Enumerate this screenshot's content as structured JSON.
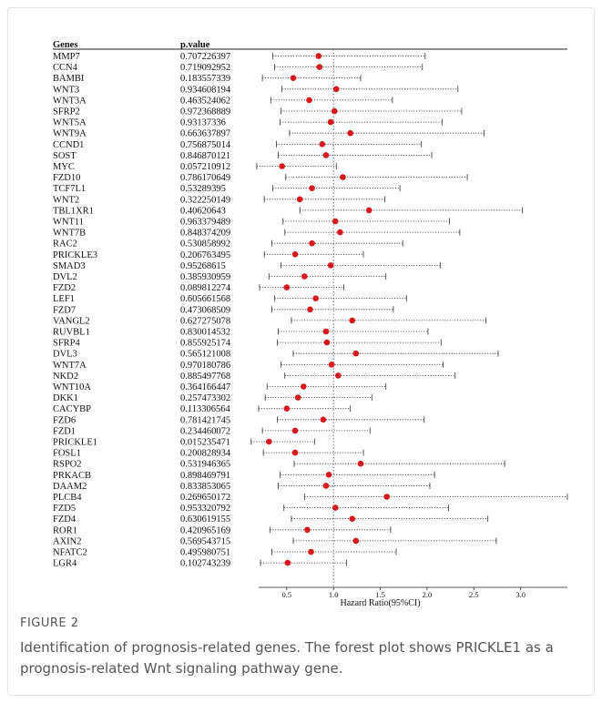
{
  "figure": {
    "label": "FIGURE 2",
    "caption": "Identification of prognosis-related genes. The forest plot shows PRICKLE1 as a prognosis-related Wnt signaling pathway gene."
  },
  "chart_data": {
    "type": "forest",
    "column_headers": {
      "genes": "Genes",
      "pvalue": "p.value"
    },
    "xlabel": "Hazard Ratio(95%CI)",
    "xticks": [
      "0.5",
      "1.0",
      "1.5",
      "2.0",
      "2.5",
      "3.0"
    ],
    "xlim": [
      0.2,
      3.5
    ],
    "reference_line": 1.0,
    "point_color": "#d7191c",
    "rows": [
      {
        "gene": "MMP7",
        "p": "0.707226397",
        "hr": 0.84,
        "lo": 0.35,
        "hi": 1.98
      },
      {
        "gene": "CCN4",
        "p": "0.719092952",
        "hr": 0.85,
        "lo": 0.37,
        "hi": 1.95
      },
      {
        "gene": "BAMBI",
        "p": "0.183557339",
        "hr": 0.57,
        "lo": 0.24,
        "hi": 1.29
      },
      {
        "gene": "WNT3",
        "p": "0.934608194",
        "hr": 1.03,
        "lo": 0.45,
        "hi": 2.33
      },
      {
        "gene": "WNT3A",
        "p": "0.463524062",
        "hr": 0.74,
        "lo": 0.33,
        "hi": 1.63
      },
      {
        "gene": "SFRP2",
        "p": "0.972368889",
        "hr": 1.01,
        "lo": 0.44,
        "hi": 2.37
      },
      {
        "gene": "WNT5A",
        "p": "0.93137336",
        "hr": 0.97,
        "lo": 0.43,
        "hi": 2.16
      },
      {
        "gene": "WNT9A",
        "p": "0.663637897",
        "hr": 1.18,
        "lo": 0.53,
        "hi": 2.61
      },
      {
        "gene": "CCND1",
        "p": "0.756875014",
        "hr": 0.88,
        "lo": 0.39,
        "hi": 1.94
      },
      {
        "gene": "SOST",
        "p": "0.846870121",
        "hr": 0.92,
        "lo": 0.41,
        "hi": 2.05
      },
      {
        "gene": "MYC",
        "p": "0.057210912",
        "hr": 0.45,
        "lo": 0.18,
        "hi": 1.03
      },
      {
        "gene": "FZD10",
        "p": "0.786170649",
        "hr": 1.1,
        "lo": 0.49,
        "hi": 2.43
      },
      {
        "gene": "TCF7L1",
        "p": "0.53289395",
        "hr": 0.77,
        "lo": 0.35,
        "hi": 1.71
      },
      {
        "gene": "WNT2",
        "p": "0.322250149",
        "hr": 0.64,
        "lo": 0.26,
        "hi": 1.55
      },
      {
        "gene": "TBL1XR1",
        "p": "0.40620643",
        "hr": 1.38,
        "lo": 0.64,
        "hi": 3.02
      },
      {
        "gene": "WNT11",
        "p": "0.963379489",
        "hr": 1.02,
        "lo": 0.46,
        "hi": 2.24
      },
      {
        "gene": "WNT7B",
        "p": "0.848374209",
        "hr": 1.07,
        "lo": 0.48,
        "hi": 2.35
      },
      {
        "gene": "RAC2",
        "p": "0.530858992",
        "hr": 0.77,
        "lo": 0.34,
        "hi": 1.74
      },
      {
        "gene": "PRICKLE3",
        "p": "0.206763495",
        "hr": 0.59,
        "lo": 0.26,
        "hi": 1.32
      },
      {
        "gene": "SMAD3",
        "p": "0.95268615",
        "hr": 0.97,
        "lo": 0.44,
        "hi": 2.14
      },
      {
        "gene": "DVL2",
        "p": "0.385930959",
        "hr": 0.69,
        "lo": 0.31,
        "hi": 1.56
      },
      {
        "gene": "FZD2",
        "p": "0.089812274",
        "hr": 0.5,
        "lo": 0.21,
        "hi": 1.11
      },
      {
        "gene": "LEF1",
        "p": "0.605661568",
        "hr": 0.81,
        "lo": 0.37,
        "hi": 1.78
      },
      {
        "gene": "FZD7",
        "p": "0.473068509",
        "hr": 0.75,
        "lo": 0.34,
        "hi": 1.64
      },
      {
        "gene": "VANGL2",
        "p": "0.627275078",
        "hr": 1.2,
        "lo": 0.55,
        "hi": 2.63
      },
      {
        "gene": "RUVBL1",
        "p": "0.830014532",
        "hr": 0.92,
        "lo": 0.41,
        "hi": 2.01
      },
      {
        "gene": "SFRP4",
        "p": "0.855925174",
        "hr": 0.93,
        "lo": 0.4,
        "hi": 2.15
      },
      {
        "gene": "DVL3",
        "p": "0.565121008",
        "hr": 1.24,
        "lo": 0.57,
        "hi": 2.76
      },
      {
        "gene": "WNT7A",
        "p": "0.970180786",
        "hr": 0.98,
        "lo": 0.44,
        "hi": 2.17
      },
      {
        "gene": "NKD2",
        "p": "0.885497768",
        "hr": 1.05,
        "lo": 0.48,
        "hi": 2.3
      },
      {
        "gene": "WNT10A",
        "p": "0.364166447",
        "hr": 0.68,
        "lo": 0.29,
        "hi": 1.56
      },
      {
        "gene": "DKK1",
        "p": "0.257473302",
        "hr": 0.62,
        "lo": 0.27,
        "hi": 1.41
      },
      {
        "gene": "CACYBP",
        "p": "0.113306564",
        "hr": 0.5,
        "lo": 0.2,
        "hi": 1.18
      },
      {
        "gene": "FZD6",
        "p": "0.781421745",
        "hr": 0.89,
        "lo": 0.4,
        "hi": 1.97
      },
      {
        "gene": "FZD1",
        "p": "0.234460072",
        "hr": 0.59,
        "lo": 0.24,
        "hi": 1.39
      },
      {
        "gene": "PRICKLE1",
        "p": "0.015235471",
        "hr": 0.31,
        "lo": 0.12,
        "hi": 0.8
      },
      {
        "gene": "FOSL1",
        "p": "0.200828934",
        "hr": 0.59,
        "lo": 0.25,
        "hi": 1.32
      },
      {
        "gene": "RSPO2",
        "p": "0.531946365",
        "hr": 1.29,
        "lo": 0.58,
        "hi": 2.83
      },
      {
        "gene": "PRKACB",
        "p": "0.898469791",
        "hr": 0.95,
        "lo": 0.43,
        "hi": 2.08
      },
      {
        "gene": "DAAM2",
        "p": "0.833853065",
        "hr": 0.92,
        "lo": 0.41,
        "hi": 2.03
      },
      {
        "gene": "PLCB4",
        "p": "0.269650172",
        "hr": 1.57,
        "lo": 0.69,
        "hi": 3.5
      },
      {
        "gene": "FZD5",
        "p": "0.953320792",
        "hr": 1.02,
        "lo": 0.47,
        "hi": 2.23
      },
      {
        "gene": "FZD4",
        "p": "0.630619155",
        "hr": 1.2,
        "lo": 0.55,
        "hi": 2.65
      },
      {
        "gene": "ROR1",
        "p": "0.420965169",
        "hr": 0.72,
        "lo": 0.32,
        "hi": 1.61
      },
      {
        "gene": "AXIN2",
        "p": "0.569543715",
        "hr": 1.24,
        "lo": 0.57,
        "hi": 2.74
      },
      {
        "gene": "NFATC2",
        "p": "0.495980751",
        "hr": 0.76,
        "lo": 0.34,
        "hi": 1.67
      },
      {
        "gene": "LGR4",
        "p": "0.102743239",
        "hr": 0.51,
        "lo": 0.22,
        "hi": 1.14
      }
    ]
  }
}
